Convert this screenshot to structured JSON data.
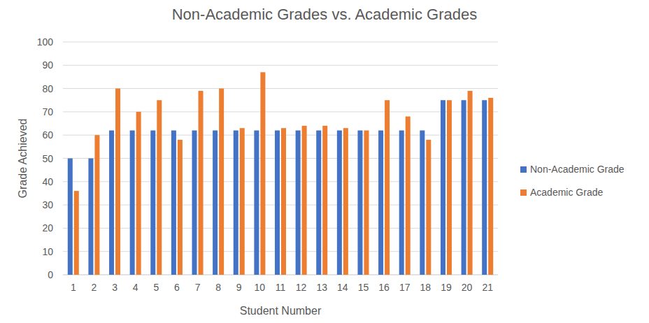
{
  "chart_data": {
    "type": "bar",
    "title": "Non-Academic Grades vs. Academic Grades",
    "x_label": "Student Number",
    "y_label": "Grade Achieved",
    "categories": [
      "1",
      "2",
      "3",
      "4",
      "5",
      "6",
      "7",
      "8",
      "9",
      "10",
      "11",
      "12",
      "13",
      "14",
      "15",
      "16",
      "17",
      "18",
      "19",
      "20",
      "21"
    ],
    "series": [
      {
        "name": "Non-Academic Grade",
        "color": "#4472c4",
        "values": [
          50,
          50,
          62,
          62,
          62,
          62,
          62,
          62,
          62,
          62,
          62,
          62,
          62,
          62,
          62,
          62,
          62,
          62,
          75,
          75,
          75
        ]
      },
      {
        "name": "Academic Grade",
        "color": "#ed7d31",
        "values": [
          36,
          60,
          80,
          70,
          75,
          58,
          79,
          80,
          63,
          87,
          63,
          64,
          64,
          63,
          62,
          75,
          68,
          58,
          75,
          79,
          76
        ]
      }
    ],
    "ylim": [
      0,
      100
    ],
    "yticks": [
      0,
      10,
      20,
      30,
      40,
      50,
      60,
      70,
      80,
      90,
      100
    ],
    "grid": true,
    "legend": "right"
  }
}
